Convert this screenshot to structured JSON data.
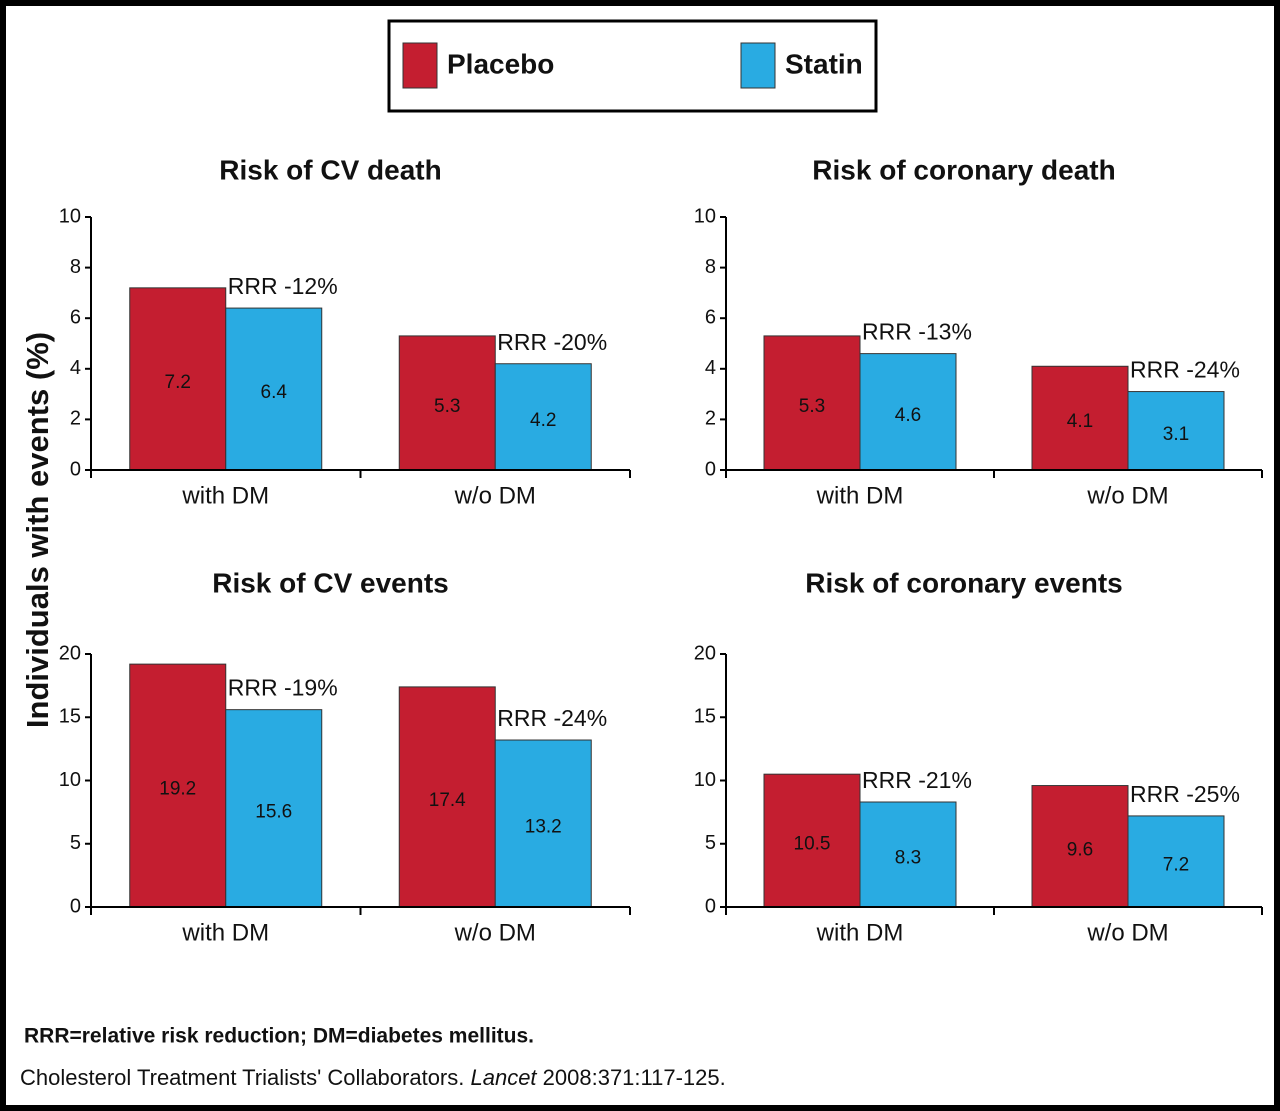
{
  "legend": [
    {
      "name": "Placebo",
      "color": "#c41e30"
    },
    {
      "name": "Statin",
      "color": "#29abe2"
    }
  ],
  "ylabel": "Individuals with events (%)",
  "footnote": "RRR=relative risk reduction; DM=diabetes mellitus.",
  "citation": [
    "Cholesterol Treatment Trialists' Collaborators. ",
    "Lancet",
    " 2008:371:117-125."
  ],
  "chart_data": [
    {
      "type": "bar",
      "title": "Risk of CV death",
      "categories": [
        "with DM",
        "w/o DM"
      ],
      "series": [
        {
          "values": [
            7.2,
            5.3
          ]
        },
        {
          "values": [
            6.4,
            4.2
          ]
        }
      ],
      "annotations": [
        "RRR -12%",
        "RRR -20%"
      ],
      "ylim": [
        0,
        10
      ],
      "yticks": [
        0,
        2,
        4,
        6,
        8,
        10
      ]
    },
    {
      "type": "bar",
      "title": "Risk of coronary death",
      "categories": [
        "with DM",
        "w/o DM"
      ],
      "series": [
        {
          "values": [
            5.3,
            4.1
          ]
        },
        {
          "values": [
            4.6,
            3.1
          ]
        }
      ],
      "annotations": [
        "RRR -13%",
        "RRR -24%"
      ],
      "ylim": [
        0,
        10
      ],
      "yticks": [
        0,
        2,
        4,
        6,
        8,
        10
      ]
    },
    {
      "type": "bar",
      "title": "Risk of CV events",
      "categories": [
        "with DM",
        "w/o DM"
      ],
      "series": [
        {
          "values": [
            19.2,
            17.4
          ]
        },
        {
          "values": [
            15.6,
            13.2
          ]
        }
      ],
      "annotations": [
        "RRR -19%",
        "RRR -24%"
      ],
      "ylim": [
        0,
        20
      ],
      "yticks": [
        0,
        5,
        10,
        15,
        20
      ]
    },
    {
      "type": "bar",
      "title": "Risk of coronary events",
      "categories": [
        "with DM",
        "w/o DM"
      ],
      "series": [
        {
          "values": [
            10.5,
            9.6
          ]
        },
        {
          "values": [
            8.3,
            7.2
          ]
        }
      ],
      "annotations": [
        "RRR -21%",
        "RRR -25%"
      ],
      "ylim": [
        0,
        20
      ],
      "yticks": [
        0,
        5,
        10,
        15,
        20
      ]
    }
  ]
}
